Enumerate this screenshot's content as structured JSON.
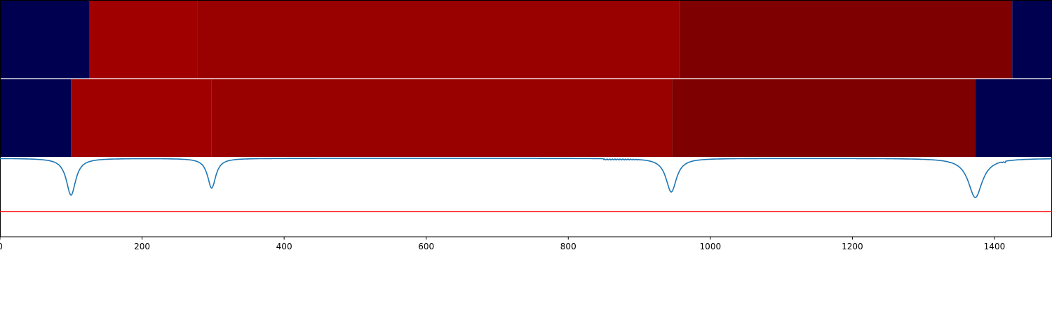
{
  "chart_data": {
    "type": "heatmap",
    "title": "",
    "xlabel": "",
    "ylabel": "",
    "xlim": [
      0,
      1481
    ],
    "grid": false,
    "legend": "none",
    "xticks": [
      0,
      200,
      400,
      600,
      800,
      1000,
      1200,
      1400
    ],
    "colors": {
      "navy": "#000050",
      "bright_red": "#a00000",
      "red": "#990000",
      "dark_red": "#7f0000",
      "line": "#1f77b4",
      "threshold": "#ff0000",
      "separator": "#ffffff"
    },
    "segment_rows": [
      {
        "segments": [
          {
            "start": 0,
            "end": 126,
            "color": "navy"
          },
          {
            "start": 126,
            "end": 278,
            "color": "bright_red"
          },
          {
            "start": 278,
            "end": 956,
            "color": "red"
          },
          {
            "start": 956,
            "end": 1425,
            "color": "dark_red"
          },
          {
            "start": 1425,
            "end": 1481,
            "color": "navy"
          }
        ]
      },
      {
        "segments": [
          {
            "start": 0,
            "end": 100,
            "color": "navy"
          },
          {
            "start": 100,
            "end": 298,
            "color": "bright_red"
          },
          {
            "start": 298,
            "end": 946,
            "color": "red"
          },
          {
            "start": 946,
            "end": 1373,
            "color": "dark_red"
          },
          {
            "start": 1373,
            "end": 1481,
            "color": "navy"
          }
        ]
      }
    ],
    "signal": {
      "ylim": [
        0,
        1
      ],
      "baseline": 1.0,
      "dips": [
        {
          "x": 100,
          "min": 0.53,
          "width": 8
        },
        {
          "x": 298,
          "min": 0.62,
          "width": 7
        },
        {
          "x": 945,
          "min": 0.57,
          "width": 9
        },
        {
          "x": 1373,
          "min": 0.5,
          "width": 12
        }
      ],
      "noisy_ranges": [
        {
          "start": 850,
          "end": 935,
          "value": 0.985
        },
        {
          "start": 1335,
          "end": 1415,
          "value": 0.95
        }
      ],
      "threshold": 0.32
    }
  }
}
